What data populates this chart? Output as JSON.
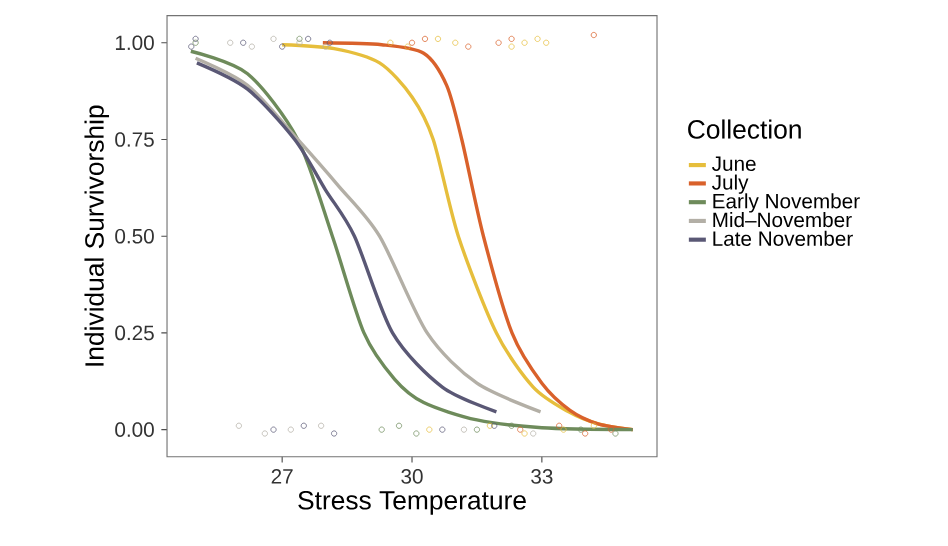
{
  "chart_data": {
    "type": "line",
    "xlabel": "Stress Temperature",
    "ylabel": "Individual Survivorship",
    "legend_title": "Collection",
    "legend": "right",
    "xlim": [
      24.34,
      35.66
    ],
    "ylim": [
      -0.07,
      1.07
    ],
    "xticks": [
      27,
      30,
      33
    ],
    "yticks": [
      {
        "value": 0,
        "label": "0.00"
      },
      {
        "value": 0.25,
        "label": "0.25"
      },
      {
        "value": 0.5,
        "label": "0.50"
      },
      {
        "value": 0.75,
        "label": "0.75"
      },
      {
        "value": 1,
        "label": "1.00"
      }
    ],
    "series": [
      {
        "type": "scatter",
        "marker": "circle",
        "color": "#e6be3c",
        "x": [
          29.5,
          29.9,
          30.6,
          31.0,
          32.3,
          32.6,
          32.9,
          33.1,
          30.4,
          31.8,
          32.6,
          33.5,
          34.2
        ],
        "values": [
          1.0,
          0.99,
          1.01,
          1.0,
          0.99,
          1.0,
          1.01,
          1.0,
          0.0,
          0.01,
          -0.01,
          0.0,
          0.01
        ]
      },
      {
        "type": "scatter",
        "marker": "circle",
        "color": "#d9612b",
        "x": [
          30.0,
          30.3,
          31.3,
          32.0,
          32.3,
          34.2,
          32.5,
          33.4,
          34.0,
          34.6
        ],
        "values": [
          1.0,
          1.01,
          0.99,
          1.0,
          1.01,
          1.02,
          0.0,
          0.01,
          -0.01,
          0.0
        ]
      },
      {
        "type": "scatter",
        "marker": "circle",
        "color": "#6e8b5b",
        "x": [
          25.0,
          27.4,
          29.3,
          29.7,
          30.1,
          31.5,
          32.3,
          33.9,
          34.7
        ],
        "values": [
          1.0,
          1.01,
          0.0,
          0.01,
          -0.01,
          0.0,
          0.01,
          0.0,
          -0.01
        ]
      },
      {
        "type": "scatter",
        "marker": "circle",
        "color": "#b3afa6",
        "x": [
          25.8,
          26.3,
          26.8,
          27.4,
          28.0,
          26.0,
          26.6,
          27.2,
          27.9,
          31.2,
          32.8
        ],
        "values": [
          1.0,
          0.99,
          1.01,
          1.0,
          0.99,
          0.01,
          -0.01,
          0.0,
          0.01,
          0.0,
          -0.01
        ]
      },
      {
        "type": "scatter",
        "marker": "circle",
        "color": "#5a5875",
        "x": [
          24.9,
          25.0,
          26.1,
          27.0,
          27.6,
          28.1,
          26.8,
          27.5,
          28.2,
          30.7,
          31.9
        ],
        "values": [
          0.99,
          1.01,
          1.0,
          0.99,
          1.01,
          1.0,
          0.0,
          0.01,
          -0.01,
          0.0,
          0.01
        ]
      },
      {
        "marker": "none",
        "name": "June",
        "color": "#e6be3c",
        "x": [
          27.0,
          28.2,
          29.25,
          30.0,
          30.49,
          31.07,
          31.95,
          32.8,
          33.62,
          34.3,
          35.1
        ],
        "values": [
          0.995,
          0.985,
          0.948,
          0.86,
          0.75,
          0.5,
          0.25,
          0.11,
          0.046,
          0.015,
          0.0
        ]
      },
      {
        "marker": "none",
        "name": "July",
        "color": "#d9612b",
        "x": [
          27.94,
          29.3,
          30.27,
          30.8,
          31.15,
          31.65,
          32.31,
          33.0,
          33.65,
          34.3,
          35.1
        ],
        "values": [
          1.0,
          0.995,
          0.973,
          0.89,
          0.75,
          0.5,
          0.25,
          0.12,
          0.05,
          0.015,
          0.0
        ]
      },
      {
        "marker": "none",
        "name": "Early November",
        "color": "#6e8b5b",
        "x": [
          24.89,
          26.2,
          27.36,
          28.16,
          28.89,
          29.6,
          30.27,
          31.5,
          33.0,
          35.1
        ],
        "values": [
          0.978,
          0.92,
          0.75,
          0.5,
          0.25,
          0.13,
          0.07,
          0.025,
          0.005,
          0.0
        ]
      },
      {
        "marker": "none",
        "name": "Mid–November",
        "color": "#b3afa6",
        "x": [
          25.0,
          26.2,
          27.36,
          28.3,
          29.25,
          30.35,
          31.5,
          32.97
        ],
        "values": [
          0.96,
          0.89,
          0.75,
          0.63,
          0.5,
          0.25,
          0.12,
          0.046
        ]
      },
      {
        "marker": "none",
        "name": "Late November",
        "color": "#5a5875",
        "x": [
          25.03,
          26.2,
          27.29,
          28.0,
          28.67,
          29.55,
          30.7,
          31.95
        ],
        "values": [
          0.948,
          0.88,
          0.75,
          0.62,
          0.5,
          0.25,
          0.11,
          0.046
        ]
      }
    ]
  }
}
